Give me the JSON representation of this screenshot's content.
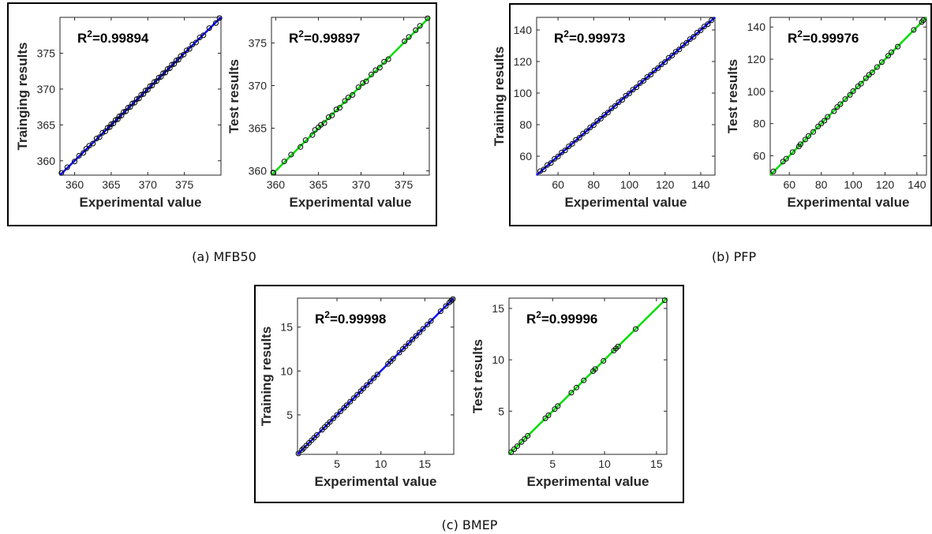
{
  "captions": [
    "(a) MFB50",
    "(b) PFP",
    "(c) BMEP"
  ],
  "colors": {
    "training_line": "#0000ff",
    "test_line": "#00dd00",
    "marker_edge": "#000000"
  },
  "chart_data": [
    {
      "id": "mfb50-train",
      "type": "scatter",
      "ylabel": "Trainging results",
      "xlabel": "Experimental value",
      "r2_label": "0.99894",
      "line_color": "#0000ff",
      "xlim": [
        358,
        380
      ],
      "ylim": [
        358,
        380
      ],
      "xticks": [
        360,
        365,
        370,
        375
      ],
      "yticks": [
        360,
        365,
        370,
        375
      ],
      "fit_line": [
        [
          358,
          358
        ],
        [
          380,
          380
        ]
      ],
      "points": [
        [
          358.2,
          358.3
        ],
        [
          359.0,
          359.1
        ],
        [
          360.0,
          359.9
        ],
        [
          360.6,
          360.7
        ],
        [
          361.2,
          361.1
        ],
        [
          361.6,
          361.7
        ],
        [
          362.0,
          362.1
        ],
        [
          362.5,
          362.4
        ],
        [
          363.0,
          363.1
        ],
        [
          363.4,
          363.3
        ],
        [
          363.8,
          363.9
        ],
        [
          364.2,
          364.1
        ],
        [
          364.5,
          364.6
        ],
        [
          364.8,
          364.7
        ],
        [
          365.0,
          365.1
        ],
        [
          365.3,
          365.2
        ],
        [
          365.6,
          365.7
        ],
        [
          365.9,
          365.8
        ],
        [
          366.1,
          366.2
        ],
        [
          366.4,
          366.3
        ],
        [
          366.7,
          366.8
        ],
        [
          367.0,
          366.9
        ],
        [
          367.3,
          367.4
        ],
        [
          367.6,
          367.5
        ],
        [
          367.9,
          368.0
        ],
        [
          368.2,
          368.1
        ],
        [
          368.5,
          368.6
        ],
        [
          368.8,
          368.7
        ],
        [
          369.1,
          369.2
        ],
        [
          369.4,
          369.3
        ],
        [
          369.7,
          369.8
        ],
        [
          370.0,
          369.9
        ],
        [
          370.3,
          370.4
        ],
        [
          370.6,
          370.5
        ],
        [
          370.9,
          371.0
        ],
        [
          371.2,
          371.1
        ],
        [
          371.5,
          371.6
        ],
        [
          371.8,
          371.7
        ],
        [
          372.1,
          372.2
        ],
        [
          372.4,
          372.3
        ],
        [
          372.7,
          372.8
        ],
        [
          373.0,
          372.9
        ],
        [
          373.3,
          373.4
        ],
        [
          373.6,
          373.5
        ],
        [
          373.9,
          374.0
        ],
        [
          374.2,
          374.1
        ],
        [
          374.5,
          374.6
        ],
        [
          374.9,
          374.8
        ],
        [
          375.3,
          375.4
        ],
        [
          375.7,
          375.6
        ],
        [
          376.1,
          376.2
        ],
        [
          376.6,
          376.5
        ],
        [
          377.1,
          377.2
        ],
        [
          377.6,
          377.5
        ],
        [
          378.4,
          378.5
        ],
        [
          379.3,
          379.2
        ],
        [
          379.8,
          379.9
        ]
      ]
    },
    {
      "id": "mfb50-test",
      "type": "scatter",
      "ylabel": "Test results",
      "xlabel": "Experimental value",
      "r2_label": "0.99897",
      "line_color": "#00dd00",
      "xlim": [
        359.5,
        378
      ],
      "ylim": [
        359.5,
        378
      ],
      "xticks": [
        360,
        365,
        370,
        375
      ],
      "yticks": [
        360,
        365,
        370,
        375
      ],
      "fit_line": [
        [
          359.5,
          359.5
        ],
        [
          378,
          378
        ]
      ],
      "points": [
        [
          359.7,
          359.8
        ],
        [
          361.0,
          361.1
        ],
        [
          361.8,
          361.9
        ],
        [
          362.9,
          362.8
        ],
        [
          363.5,
          363.6
        ],
        [
          364.3,
          364.2
        ],
        [
          364.6,
          364.8
        ],
        [
          365.0,
          365.1
        ],
        [
          365.3,
          365.4
        ],
        [
          365.7,
          365.6
        ],
        [
          366.2,
          366.3
        ],
        [
          366.6,
          366.5
        ],
        [
          367.1,
          367.2
        ],
        [
          367.5,
          367.4
        ],
        [
          368.1,
          368.2
        ],
        [
          368.5,
          368.6
        ],
        [
          369.0,
          368.9
        ],
        [
          369.7,
          369.8
        ],
        [
          370.2,
          370.3
        ],
        [
          370.6,
          370.5
        ],
        [
          371.2,
          371.3
        ],
        [
          371.7,
          371.8
        ],
        [
          372.2,
          372.1
        ],
        [
          372.7,
          372.8
        ],
        [
          373.2,
          373.1
        ],
        [
          375.1,
          375.2
        ],
        [
          375.6,
          375.7
        ],
        [
          376.4,
          376.5
        ],
        [
          376.9,
          377.0
        ],
        [
          377.8,
          377.9
        ]
      ]
    },
    {
      "id": "pfp-train",
      "type": "scatter",
      "ylabel": "Training results",
      "xlabel": "Experimental value",
      "r2_label": "0.99973",
      "line_color": "#0000ff",
      "xlim": [
        48,
        148
      ],
      "ylim": [
        48,
        148
      ],
      "xticks": [
        60,
        80,
        100,
        120,
        140
      ],
      "yticks": [
        60,
        80,
        100,
        120,
        140
      ],
      "fit_line": [
        [
          48,
          48
        ],
        [
          148,
          148
        ]
      ],
      "points": [
        [
          50,
          50.5
        ],
        [
          52,
          51.6
        ],
        [
          54,
          54.4
        ],
        [
          56,
          55.7
        ],
        [
          58,
          58.3
        ],
        [
          60,
          59.8
        ],
        [
          62,
          62.3
        ],
        [
          64,
          63.7
        ],
        [
          66,
          66.2
        ],
        [
          68,
          67.8
        ],
        [
          70,
          70.4
        ],
        [
          72,
          71.7
        ],
        [
          74,
          74.3
        ],
        [
          76,
          75.8
        ],
        [
          78,
          78.2
        ],
        [
          80,
          79.7
        ],
        [
          82,
          82.3
        ],
        [
          84,
          83.8
        ],
        [
          86,
          86.2
        ],
        [
          88,
          87.7
        ],
        [
          90,
          90.3
        ],
        [
          92,
          91.8
        ],
        [
          94,
          94.2
        ],
        [
          96,
          95.7
        ],
        [
          98,
          98.3
        ],
        [
          100,
          99.8
        ],
        [
          102,
          102.2
        ],
        [
          104,
          103.7
        ],
        [
          106,
          106.3
        ],
        [
          108,
          107.8
        ],
        [
          110,
          110.2
        ],
        [
          112,
          111.7
        ],
        [
          114,
          114.3
        ],
        [
          116,
          115.8
        ],
        [
          118,
          118.2
        ],
        [
          120,
          119.7
        ],
        [
          122,
          122.3
        ],
        [
          124,
          123.8
        ],
        [
          126,
          126.2
        ],
        [
          128,
          127.7
        ],
        [
          130,
          130.3
        ],
        [
          132,
          131.8
        ],
        [
          134,
          134.2
        ],
        [
          136,
          135.7
        ],
        [
          138,
          138.3
        ],
        [
          140,
          139.8
        ],
        [
          142,
          142.2
        ],
        [
          144,
          143.7
        ],
        [
          146,
          146.1
        ]
      ]
    },
    {
      "id": "pfp-test",
      "type": "scatter",
      "ylabel": "Test results",
      "xlabel": "Experimental value",
      "r2_label": "0.99976",
      "line_color": "#00dd00",
      "xlim": [
        48,
        146
      ],
      "ylim": [
        48,
        146
      ],
      "xticks": [
        60,
        80,
        100,
        120,
        140
      ],
      "yticks": [
        60,
        80,
        100,
        120,
        140
      ],
      "fit_line": [
        [
          48,
          48
        ],
        [
          146,
          146
        ]
      ],
      "points": [
        [
          50,
          50.3
        ],
        [
          56,
          56.4
        ],
        [
          58,
          58.2
        ],
        [
          62,
          62.3
        ],
        [
          66,
          65.8
        ],
        [
          67,
          67.2
        ],
        [
          70,
          70.1
        ],
        [
          72,
          72.3
        ],
        [
          75,
          74.8
        ],
        [
          78,
          78.2
        ],
        [
          80,
          80.1
        ],
        [
          82,
          81.8
        ],
        [
          84,
          84.2
        ],
        [
          88,
          87.7
        ],
        [
          90,
          90.3
        ],
        [
          92,
          92.1
        ],
        [
          95,
          95.2
        ],
        [
          98,
          97.8
        ],
        [
          100,
          100.2
        ],
        [
          103,
          103.1
        ],
        [
          105,
          104.8
        ],
        [
          108,
          108.2
        ],
        [
          110,
          110.3
        ],
        [
          112,
          111.8
        ],
        [
          115,
          115.1
        ],
        [
          118,
          118.2
        ],
        [
          122,
          122.1
        ],
        [
          124,
          124.3
        ],
        [
          128,
          127.8
        ],
        [
          138,
          138.2
        ],
        [
          143,
          143.1
        ],
        [
          144,
          144.2
        ]
      ]
    },
    {
      "id": "bmep-train",
      "type": "scatter",
      "ylabel": "Training results",
      "xlabel": "Experimental value",
      "r2_label": "0.99998",
      "line_color": "#0000ff",
      "xlim": [
        0.5,
        18.3
      ],
      "ylim": [
        0.5,
        18.3
      ],
      "xticks": [
        5,
        10,
        15
      ],
      "yticks": [
        5,
        10,
        15
      ],
      "fit_line": [
        [
          0.5,
          0.5
        ],
        [
          18.3,
          18.3
        ]
      ],
      "points": [
        [
          0.6,
          0.6
        ],
        [
          1.0,
          1.0
        ],
        [
          1.2,
          1.2
        ],
        [
          1.5,
          1.5
        ],
        [
          1.8,
          1.8
        ],
        [
          2.1,
          2.1
        ],
        [
          2.4,
          2.4
        ],
        [
          2.7,
          2.7
        ],
        [
          3.3,
          3.3
        ],
        [
          3.6,
          3.6
        ],
        [
          3.9,
          3.9
        ],
        [
          4.2,
          4.2
        ],
        [
          4.6,
          4.6
        ],
        [
          5.0,
          5.0
        ],
        [
          5.4,
          5.4
        ],
        [
          5.8,
          5.8
        ],
        [
          6.1,
          6.1
        ],
        [
          6.5,
          6.5
        ],
        [
          6.9,
          6.9
        ],
        [
          7.3,
          7.3
        ],
        [
          7.7,
          7.7
        ],
        [
          8.0,
          8.0
        ],
        [
          8.4,
          8.4
        ],
        [
          8.8,
          8.8
        ],
        [
          9.2,
          9.2
        ],
        [
          9.6,
          9.6
        ],
        [
          10.8,
          10.8
        ],
        [
          11.1,
          11.1
        ],
        [
          11.4,
          11.4
        ],
        [
          12.1,
          12.1
        ],
        [
          12.5,
          12.5
        ],
        [
          12.8,
          12.8
        ],
        [
          13.2,
          13.2
        ],
        [
          13.6,
          13.6
        ],
        [
          14.0,
          14.0
        ],
        [
          14.4,
          14.4
        ],
        [
          14.8,
          14.8
        ],
        [
          15.3,
          15.3
        ],
        [
          15.7,
          15.7
        ],
        [
          16.8,
          16.8
        ],
        [
          17.4,
          17.4
        ],
        [
          17.8,
          17.8
        ],
        [
          18.0,
          18.0
        ],
        [
          18.2,
          18.2
        ]
      ]
    },
    {
      "id": "bmep-test",
      "type": "scatter",
      "ylabel": "Test results",
      "xlabel": "Experimental value",
      "r2_label": "0.99996",
      "line_color": "#00dd00",
      "xlim": [
        0.8,
        16
      ],
      "ylim": [
        0.8,
        16
      ],
      "xticks": [
        5,
        10,
        15
      ],
      "yticks": [
        5,
        10,
        15
      ],
      "fit_line": [
        [
          0.8,
          0.8
        ],
        [
          16,
          16
        ]
      ],
      "points": [
        [
          1.0,
          1.0
        ],
        [
          1.3,
          1.3
        ],
        [
          1.6,
          1.6
        ],
        [
          2.0,
          2.0
        ],
        [
          2.3,
          2.3
        ],
        [
          2.6,
          2.6
        ],
        [
          4.3,
          4.3
        ],
        [
          4.6,
          4.6
        ],
        [
          5.2,
          5.2
        ],
        [
          5.5,
          5.5
        ],
        [
          6.8,
          6.8
        ],
        [
          7.3,
          7.3
        ],
        [
          8.0,
          8.0
        ],
        [
          8.9,
          8.9
        ],
        [
          9.1,
          9.1
        ],
        [
          9.9,
          9.9
        ],
        [
          10.9,
          10.9
        ],
        [
          11.1,
          11.1
        ],
        [
          11.3,
          11.3
        ],
        [
          13.0,
          13.0
        ],
        [
          15.8,
          15.8
        ]
      ]
    }
  ]
}
